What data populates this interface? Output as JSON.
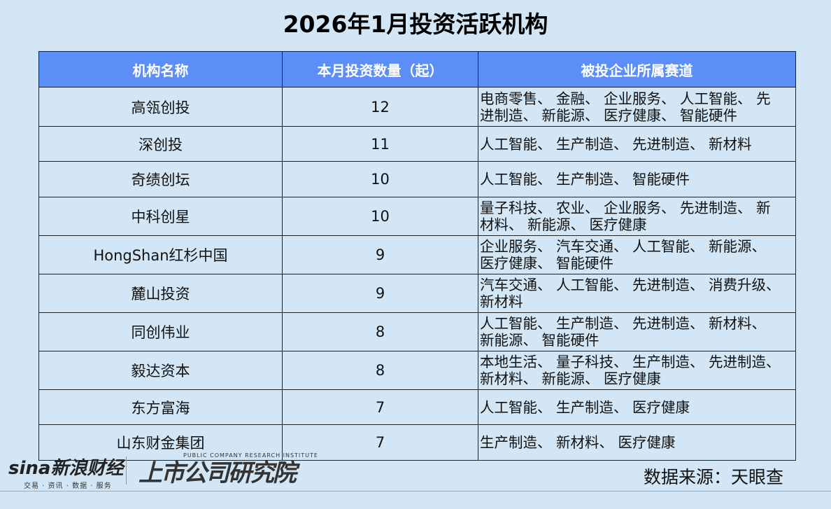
{
  "title": "2026年1月投资活跃机构",
  "headers": [
    "机构名称",
    "本月投资数量（起）",
    "被投企业所属赛道"
  ],
  "rows": [
    {
      "name": "高瓴创投",
      "count": "12",
      "lines": [
        "电商零售、 金融、 企业服务、 人工智能、 先",
        "进制造、 新能源、 医疗健康、 智能硬件"
      ]
    },
    {
      "name": "深创投",
      "count": "11",
      "lines": [
        "人工智能、 生产制造、 先进制造、 新材料"
      ]
    },
    {
      "name": "奇绩创坛",
      "count": "10",
      "lines": [
        "人工智能、 生产制造、 智能硬件"
      ]
    },
    {
      "name": "中科创星",
      "count": "10",
      "lines": [
        "量子科技、 农业、 企业服务、 先进制造、 新",
        "材料、 新能源、 医疗健康"
      ]
    },
    {
      "name": "HongShan红杉中国",
      "count": "9",
      "lines": [
        "企业服务、 汽车交通、 人工智能、 新能源、",
        "医疗健康、 智能硬件"
      ]
    },
    {
      "name": "麓山投资",
      "count": "9",
      "lines": [
        "汽车交通、 人工智能、 先进制造、 消费升级、",
        "新材料"
      ]
    },
    {
      "name": "同创伟业",
      "count": "8",
      "lines": [
        "人工智能、 生产制造、 先进制造、 新材料、",
        "新能源、 智能硬件"
      ]
    },
    {
      "name": "毅达资本",
      "count": "8",
      "lines": [
        "本地生活、 量子科技、 生产制造、 先进制造、",
        "新材料、 新能源、 医疗健康"
      ]
    },
    {
      "name": "东方富海",
      "count": "7",
      "lines": [
        "人工智能、 生产制造、 医疗健康"
      ]
    },
    {
      "name": "山东财金集团",
      "count": "7",
      "lines": [
        "生产制造、 新材料、 医疗健康"
      ]
    }
  ],
  "source": "数据来源：天眼查",
  "logos": {
    "sina": "sina新浪财经",
    "sina_tagline": "交易 · 资讯 · 数据 · 服务",
    "institute": "上市公司研究院",
    "institute_en": "PUBLIC COMPANY RESEARCH INSTITUTE"
  },
  "colors": {
    "header": "#5b8ff7",
    "background": "#d2e6f5"
  }
}
